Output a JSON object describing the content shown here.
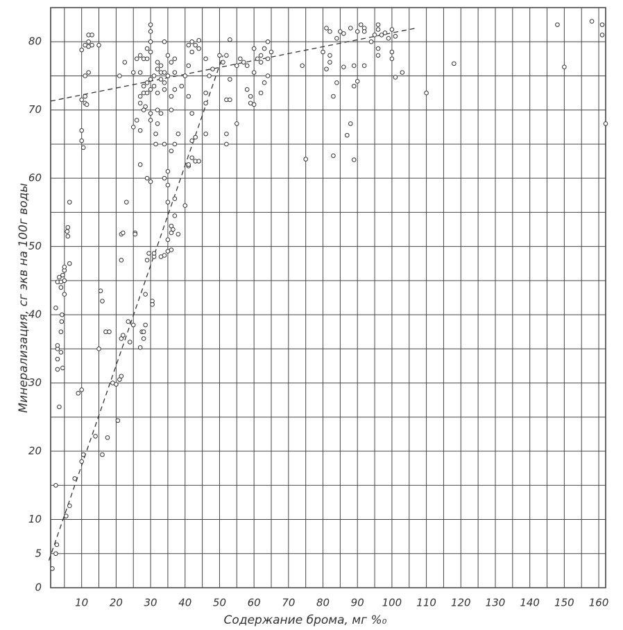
{
  "chart_data": {
    "type": "scatter",
    "x_label": "Содержание брома, мг %₀",
    "y_label": "Минерализация, сг экв на 100г воды",
    "xlim": [
      0,
      162
    ],
    "ylim": [
      0,
      85
    ],
    "xticks": [
      10,
      20,
      30,
      40,
      50,
      60,
      70,
      80,
      90,
      100,
      110,
      120,
      130,
      140,
      150,
      160
    ],
    "yticks": [
      0,
      5,
      10,
      20,
      30,
      40,
      50,
      60,
      70,
      80
    ],
    "xgrid": [
      0,
      5,
      10,
      15,
      20,
      25,
      30,
      35,
      40,
      45,
      50,
      55,
      60,
      65,
      70,
      75,
      80,
      85,
      90,
      95,
      100,
      105,
      110,
      115,
      120,
      125,
      130,
      135,
      140,
      145,
      150,
      155,
      160
    ],
    "ygrid": [
      0,
      5,
      10,
      15,
      20,
      25,
      30,
      35,
      40,
      45,
      50,
      55,
      60,
      65,
      70,
      75,
      80,
      85
    ],
    "color": "#333333",
    "x": [
      1.5,
      2.5,
      2.8,
      2.5,
      5.5,
      6.5,
      3.5,
      3,
      4.5,
      3,
      3,
      3,
      4,
      4,
      4.2,
      4.3,
      2.5,
      5,
      4,
      3,
      4,
      5,
      3.5,
      4.5,
      5,
      5,
      6.5,
      6,
      5.8,
      6,
      6.5,
      8,
      10,
      10.5,
      9,
      10,
      10,
      10.5,
      10,
      10,
      11,
      11,
      11.5,
      10,
      11,
      12,
      11,
      12,
      13,
      12,
      12,
      13,
      15,
      14,
      16,
      15,
      16,
      15.5,
      17,
      18,
      17.5,
      19,
      20,
      20.5,
      21,
      21.5,
      21.5,
      22,
      21.5,
      21.5,
      22,
      23,
      23.5,
      24,
      25,
      25.5,
      25.5,
      21,
      22.5,
      25,
      25,
      26,
      27,
      27,
      27,
      27.5,
      28,
      28,
      28.5,
      28.5,
      29,
      29.5,
      29,
      30,
      30.5,
      30.5,
      31,
      31,
      31.5,
      31.5,
      30,
      30,
      28,
      28.5,
      27,
      27,
      28,
      29,
      30,
      31,
      28,
      29,
      30,
      31,
      27,
      26,
      27,
      28,
      29,
      30,
      30,
      30,
      30,
      29,
      32,
      32,
      33,
      33,
      34,
      33,
      34,
      35,
      34,
      32,
      32,
      33,
      32,
      34,
      34,
      35,
      35,
      36,
      36,
      36.5,
      35,
      36,
      35,
      34,
      33,
      37,
      37,
      38,
      35,
      36,
      37,
      38,
      36,
      36,
      37,
      37,
      36,
      37,
      35,
      34,
      40,
      41,
      41,
      42,
      43,
      44,
      42,
      43,
      42,
      41,
      46,
      40,
      39,
      41,
      42,
      41,
      42,
      43,
      44,
      44,
      46,
      46,
      46,
      47,
      48,
      52,
      52,
      52,
      53,
      53,
      51,
      50,
      52,
      53,
      55,
      55,
      56,
      57,
      58,
      58,
      59,
      59,
      60,
      60,
      61,
      62,
      62,
      60,
      63,
      64,
      65,
      64,
      64,
      63,
      62,
      74,
      75,
      81,
      82,
      82,
      80,
      81,
      82,
      84,
      85,
      86,
      88,
      84,
      83,
      83,
      87,
      88,
      86,
      89,
      90,
      89,
      89,
      90,
      91,
      92,
      92,
      92,
      94,
      95,
      96,
      96,
      97,
      98,
      99,
      100,
      101,
      100,
      100,
      96,
      96,
      101,
      103,
      110,
      118,
      148,
      150,
      158,
      161,
      161,
      162
    ],
    "values": [
      2.8,
      5,
      6.3,
      15,
      10.5,
      12,
      26.5,
      32,
      32.2,
      33.5,
      35,
      35.5,
      34.5,
      37.5,
      39,
      40,
      41,
      43,
      44,
      44.8,
      44.8,
      45,
      45.5,
      45.8,
      46.5,
      47,
      47.5,
      51.5,
      52.2,
      52.8,
      56.5,
      16,
      18.5,
      19.5,
      28.5,
      29,
      65.5,
      64.5,
      67,
      71.5,
      71,
      72,
      70.8,
      78.8,
      75,
      75.5,
      79.5,
      79.3,
      79.5,
      80,
      81,
      81,
      79.5,
      22.2,
      19.5,
      35,
      42,
      43.5,
      37.5,
      37.5,
      22,
      30,
      29.8,
      24.5,
      30.5,
      31,
      36.5,
      37,
      48,
      51.8,
      52,
      56.5,
      39,
      36,
      38.5,
      52,
      51.8,
      75,
      77,
      75.5,
      67.5,
      68.5,
      67,
      62,
      35.2,
      37.5,
      36.5,
      37.5,
      38.5,
      43,
      48,
      49,
      60,
      59.5,
      42,
      41.5,
      48.5,
      49,
      65,
      66.5,
      68.5,
      69.5,
      70,
      70.5,
      71,
      72,
      72.5,
      72.5,
      73,
      73.5,
      73.5,
      74,
      74.5,
      75,
      75.5,
      77.5,
      78,
      77.5,
      77.5,
      78.5,
      80,
      81.5,
      82.5,
      79,
      76,
      77,
      76.5,
      75.5,
      75.5,
      74.5,
      74,
      75,
      73,
      72.5,
      70,
      69.5,
      68,
      65,
      60,
      59,
      56.5,
      53,
      52,
      52.5,
      51,
      49.5,
      49.3,
      48.7,
      48.5,
      57,
      54.5,
      51.8,
      61,
      64,
      65,
      66.5,
      70,
      72,
      73,
      75.5,
      77,
      77.5,
      78,
      80,
      56,
      61.8,
      62,
      63,
      62.5,
      62.5,
      65.5,
      66,
      69.5,
      72,
      72.5,
      75,
      73.5,
      76.5,
      78.5,
      79.5,
      80,
      79.5,
      79,
      80.2,
      66.5,
      71,
      77.5,
      75,
      76,
      65,
      66.5,
      71.5,
      71.5,
      74.5,
      77,
      78,
      78,
      80.3,
      76.5,
      68,
      77.5,
      77,
      76.5,
      73,
      72,
      71,
      70.8,
      75.5,
      77.5,
      77,
      78,
      79,
      79,
      77.5,
      78.5,
      80,
      75,
      74,
      72.5,
      76.5,
      62.8,
      76,
      77,
      78,
      78.5,
      82,
      81.5,
      80.5,
      81.5,
      81.2,
      82,
      74,
      72,
      63.3,
      66.3,
      68,
      76.3,
      76.5,
      74.2,
      73.5,
      62.7,
      81.5,
      82.5,
      82,
      81.5,
      76.5,
      80,
      81,
      82.5,
      81.8,
      81,
      81.3,
      80.5,
      81.8,
      80.8,
      78.5,
      77.5,
      79,
      78,
      74.8,
      75.5,
      72.5,
      76.8,
      82.5,
      76.3,
      83,
      82.5,
      81,
      68
    ],
    "trend_lines": [
      {
        "x": [
          1,
          107
        ],
        "values": [
          71.3,
          82
        ]
      },
      {
        "x": [
          0.5,
          51
        ],
        "values": [
          4,
          78
        ]
      }
    ]
  }
}
